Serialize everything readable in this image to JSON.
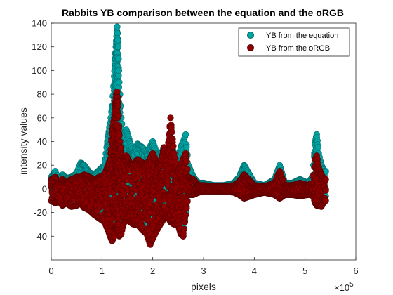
{
  "chart_data": {
    "type": "scatter",
    "title": "Rabbits YB comparison between the equation and the oRGB",
    "xlabel": "pixels",
    "ylabel": "intensity values",
    "xlim": [
      0,
      600000
    ],
    "ylim": [
      -60,
      140
    ],
    "x_ticks": [
      0,
      100000,
      200000,
      300000,
      400000,
      500000,
      600000
    ],
    "x_tick_labels": [
      "0",
      "1",
      "2",
      "3",
      "4",
      "5",
      "6"
    ],
    "x_exponent_label": "×10",
    "x_exponent_power": "5",
    "y_ticks": [
      -40,
      -20,
      0,
      20,
      40,
      60,
      80,
      100,
      120,
      140
    ],
    "y_tick_labels": [
      "-40",
      "-20",
      "0",
      "20",
      "40",
      "60",
      "80",
      "100",
      "120",
      "140"
    ],
    "grid": false,
    "legend_position": "top-right",
    "series": [
      {
        "name": "YB from the equation",
        "color": "#00A2A2",
        "x": [
          0,
          8000,
          15000,
          22000,
          30000,
          40000,
          50000,
          58000,
          65000,
          75000,
          85000,
          95000,
          105000,
          112000,
          116000,
          120000,
          124000,
          126000,
          128000,
          130000,
          132000,
          134000,
          138000,
          142000,
          148000,
          155000,
          162000,
          170000,
          180000,
          188000,
          195000,
          200000,
          208000,
          215000,
          222000,
          228000,
          235000,
          242000,
          248000,
          255000,
          260000,
          265000,
          270000,
          280000,
          290000,
          300000,
          320000,
          340000,
          360000,
          370000,
          380000,
          400000,
          420000,
          440000,
          450000,
          460000,
          475000,
          490000,
          505000,
          515000,
          520000,
          523000,
          527000,
          532000,
          538000
        ],
        "y": [
          10,
          15,
          6,
          12,
          9,
          10,
          13,
          22,
          20,
          14,
          12,
          16,
          20,
          45,
          55,
          70,
          95,
          110,
          125,
          137,
          120,
          90,
          60,
          45,
          50,
          40,
          30,
          38,
          35,
          30,
          36,
          40,
          30,
          28,
          35,
          25,
          40,
          30,
          20,
          35,
          40,
          46,
          20,
          10,
          5,
          5,
          3,
          3,
          5,
          10,
          20,
          5,
          3,
          8,
          20,
          5,
          5,
          8,
          5,
          10,
          40,
          46,
          30,
          20,
          15
        ],
        "y_min": [
          -10,
          -12,
          -10,
          -14,
          -12,
          -15,
          -14,
          -12,
          -16,
          -18,
          -20,
          -22,
          -25,
          -30,
          -32,
          -28,
          -25,
          -22,
          -20,
          -18,
          -22,
          -30,
          -25,
          -20,
          -18,
          -22,
          -20,
          -20,
          -25,
          -30,
          -45,
          -40,
          -30,
          -25,
          -22,
          -20,
          -25,
          -28,
          -25,
          -35,
          -40,
          -20,
          -5,
          -5,
          -3,
          -2,
          -2,
          -2,
          -3,
          -5,
          -8,
          -5,
          -3,
          -5,
          -8,
          -5,
          -5,
          -6,
          -5,
          -5,
          -10,
          -12,
          -12,
          -15,
          -10
        ]
      },
      {
        "name": "YB from the oRGB",
        "color": "#8B0000",
        "x": [
          0,
          8000,
          15000,
          22000,
          30000,
          40000,
          50000,
          58000,
          65000,
          75000,
          85000,
          95000,
          105000,
          112000,
          116000,
          120000,
          124000,
          126000,
          128000,
          130000,
          132000,
          134000,
          138000,
          142000,
          148000,
          155000,
          162000,
          170000,
          180000,
          188000,
          195000,
          200000,
          208000,
          215000,
          222000,
          228000,
          235000,
          242000,
          248000,
          255000,
          260000,
          265000,
          270000,
          280000,
          290000,
          300000,
          320000,
          340000,
          360000,
          370000,
          380000,
          400000,
          420000,
          440000,
          450000,
          460000,
          475000,
          490000,
          505000,
          515000,
          520000,
          523000,
          527000,
          532000,
          538000
        ],
        "y": [
          8,
          10,
          5,
          8,
          6,
          8,
          10,
          10,
          12,
          10,
          8,
          10,
          12,
          20,
          25,
          50,
          60,
          70,
          80,
          82,
          70,
          45,
          30,
          25,
          28,
          22,
          20,
          25,
          22,
          20,
          26,
          30,
          22,
          20,
          35,
          25,
          60,
          30,
          15,
          20,
          25,
          30,
          10,
          8,
          3,
          3,
          2,
          2,
          3,
          6,
          12,
          3,
          2,
          5,
          15,
          3,
          3,
          5,
          3,
          5,
          25,
          28,
          18,
          12,
          8
        ],
        "y_min": [
          -10,
          -12,
          -10,
          -14,
          -12,
          -15,
          -14,
          -12,
          -16,
          -18,
          -22,
          -25,
          -28,
          -35,
          -40,
          -44,
          -40,
          -35,
          -32,
          -30,
          -35,
          -40,
          -38,
          -30,
          -25,
          -28,
          -30,
          -30,
          -35,
          -38,
          -47,
          -42,
          -35,
          -30,
          -25,
          -22,
          -28,
          -30,
          -28,
          -38,
          -40,
          -22,
          -5,
          -5,
          -3,
          -2,
          -2,
          -2,
          -3,
          -5,
          -8,
          -5,
          -3,
          -5,
          -8,
          -5,
          -5,
          -6,
          -5,
          -5,
          -12,
          -14,
          -14,
          -15,
          -10
        ]
      }
    ]
  }
}
